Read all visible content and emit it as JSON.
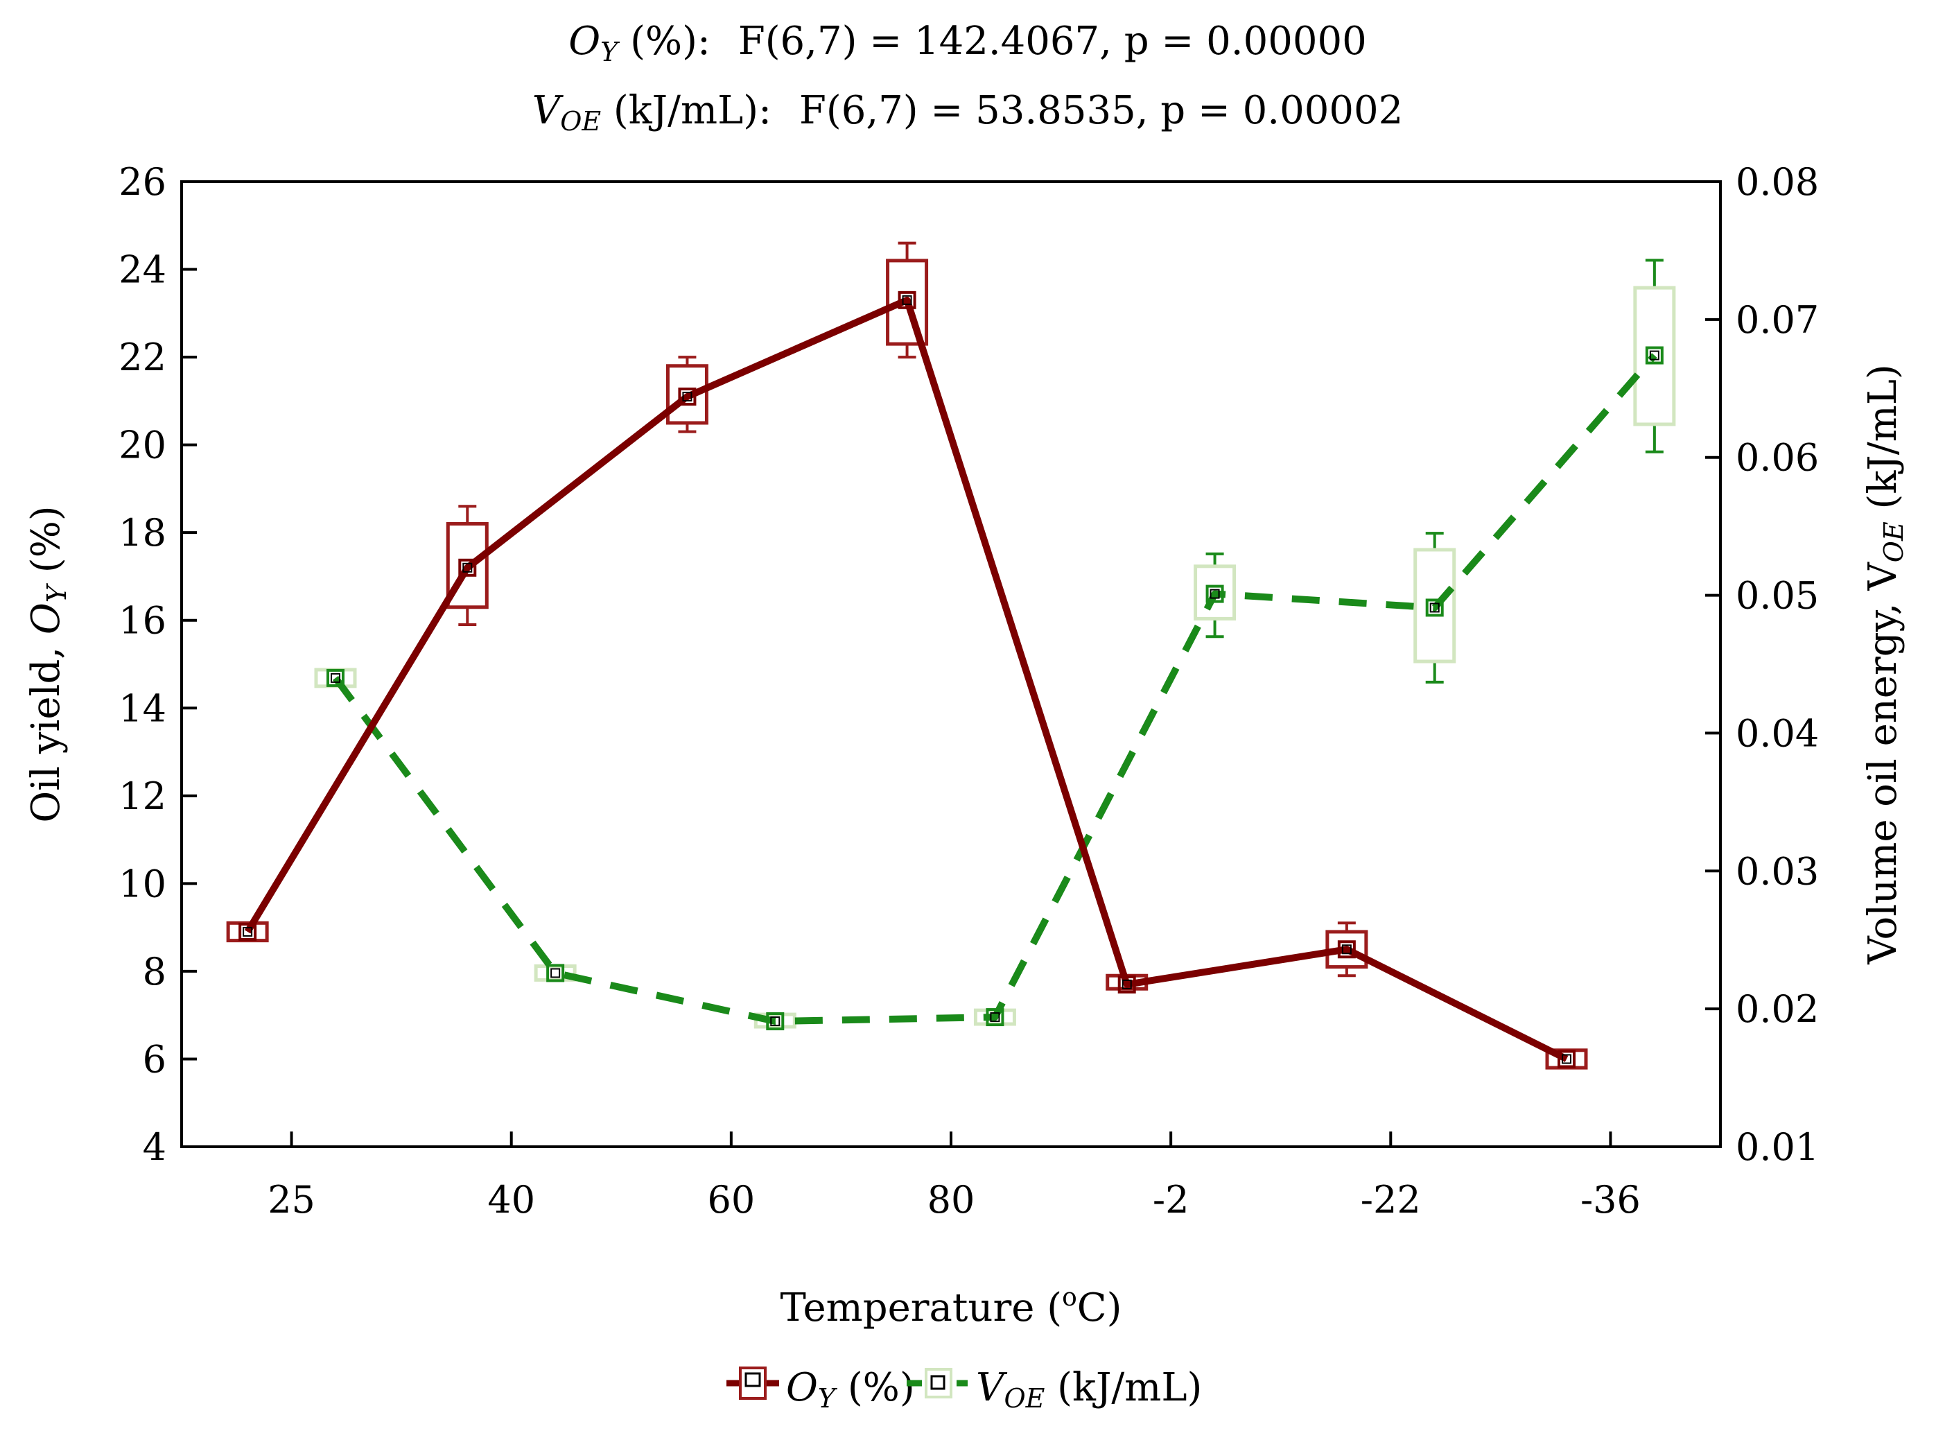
{
  "chart_data": {
    "type": "line",
    "title_lines": [
      {
        "var_main": "O",
        "var_sub": "Y",
        "unit": " (%):",
        "stat": "F(6,7) = 142.4067, p = 0.00000"
      },
      {
        "var_main": "V",
        "var_sub": "OE",
        "unit": " (kJ/mL):",
        "stat": "F(6,7) = 53.8535, p = 0.00002"
      }
    ],
    "categories": [
      "25",
      "40",
      "60",
      "80",
      "-2",
      "-22",
      "-36"
    ],
    "xlabel": {
      "main": "Temperature (",
      "sup": "o",
      "end": "C)"
    },
    "y_left": {
      "label_main": "Oil yield, ",
      "label_var": "O",
      "label_sub": "Y",
      "label_end": " (%)",
      "range": [
        4,
        26
      ],
      "ticks": [
        "4",
        "6",
        "8",
        "10",
        "12",
        "14",
        "16",
        "18",
        "20",
        "22",
        "24",
        "26"
      ]
    },
    "y_right": {
      "label_main": "Volume oil energy, V",
      "label_sub": "OE",
      "label_end": " (kJ/mL)",
      "range": [
        0.01,
        0.08
      ],
      "ticks": [
        "0.01",
        "0.02",
        "0.03",
        "0.04",
        "0.05",
        "0.06",
        "0.07",
        "0.08"
      ]
    },
    "series": [
      {
        "name": "OY (%)",
        "legend_main": "O",
        "legend_sub": "Y",
        "legend_end": " (%)",
        "axis": "left",
        "color": "#7b0000",
        "box_color": "#9b1c1c",
        "dash": false,
        "offset": -0.2,
        "values": [
          8.9,
          17.2,
          21.1,
          23.3,
          7.7,
          8.5,
          6.0
        ],
        "box_low": [
          8.7,
          16.3,
          20.5,
          22.3,
          7.6,
          8.1,
          5.8
        ],
        "box_high": [
          9.1,
          18.2,
          21.8,
          24.2,
          7.9,
          8.9,
          6.2
        ],
        "whisker_low": [
          8.7,
          15.9,
          20.3,
          22.0,
          7.6,
          7.9,
          5.8
        ],
        "whisker_high": [
          9.1,
          18.6,
          22.0,
          24.6,
          7.9,
          9.1,
          6.2
        ]
      },
      {
        "name": "VOE (kJ/mL)",
        "legend_main": "V",
        "legend_sub": "OE",
        "legend_end": " (kJ/mL)",
        "axis": "right",
        "color": "#1a8a1a",
        "box_color": "#d2e6c0",
        "dash": true,
        "offset": 0.2,
        "values": [
          0.044,
          0.0226,
          0.0191,
          0.0194,
          0.0501,
          0.0491,
          0.0674
        ],
        "box_low": [
          0.0434,
          0.0221,
          0.0187,
          0.0189,
          0.0483,
          0.0452,
          0.0624
        ],
        "box_high": [
          0.0446,
          0.0231,
          0.0196,
          0.0199,
          0.0521,
          0.0533,
          0.0723
        ],
        "whisker_low": [
          0.0434,
          0.0221,
          0.0187,
          0.0189,
          0.047,
          0.0437,
          0.0604
        ],
        "whisker_high": [
          0.0446,
          0.0231,
          0.0196,
          0.0199,
          0.053,
          0.0545,
          0.0743
        ]
      }
    ],
    "legend_position": "bottom-center"
  }
}
